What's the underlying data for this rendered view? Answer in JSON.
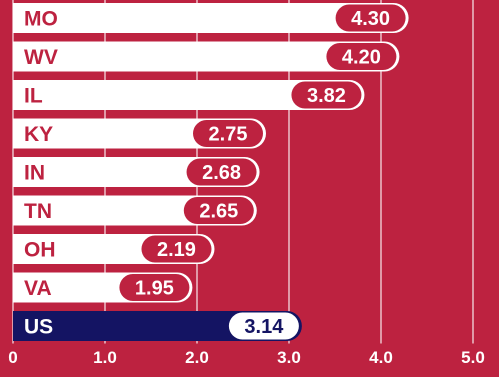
{
  "chart_data": {
    "type": "bar",
    "orientation": "horizontal",
    "title": "",
    "xlabel": "",
    "ylabel": "",
    "categories": [
      "MO",
      "WV",
      "IL",
      "KY",
      "IN",
      "TN",
      "OH",
      "VA",
      "US"
    ],
    "values": [
      4.3,
      4.2,
      3.82,
      2.75,
      2.68,
      2.65,
      2.19,
      1.95,
      3.14
    ],
    "value_labels": [
      "4.30",
      "4.20",
      "3.82",
      "2.75",
      "2.68",
      "2.65",
      "2.19",
      "1.95",
      "3.14"
    ],
    "highlight_category": "US",
    "xlim": [
      0,
      5
    ],
    "x_ticks": [
      0,
      1,
      2,
      3,
      4,
      5
    ],
    "x_tick_labels": [
      "0",
      "1.0",
      "2.0",
      "3.0",
      "4.0",
      "5.0"
    ],
    "grid": true,
    "legend": "none"
  },
  "colors": {
    "background": "#bd2240",
    "bar": "#ffffff",
    "bar_text": "#bd2240",
    "value_badge": "#bd2240",
    "value_text": "#ffffff",
    "highlight_bar": "#141463",
    "highlight_text": "#ffffff",
    "highlight_badge": "#ffffff",
    "highlight_value_text": "#141463",
    "gridline": "#ffffff",
    "tick_text": "#ffffff"
  }
}
